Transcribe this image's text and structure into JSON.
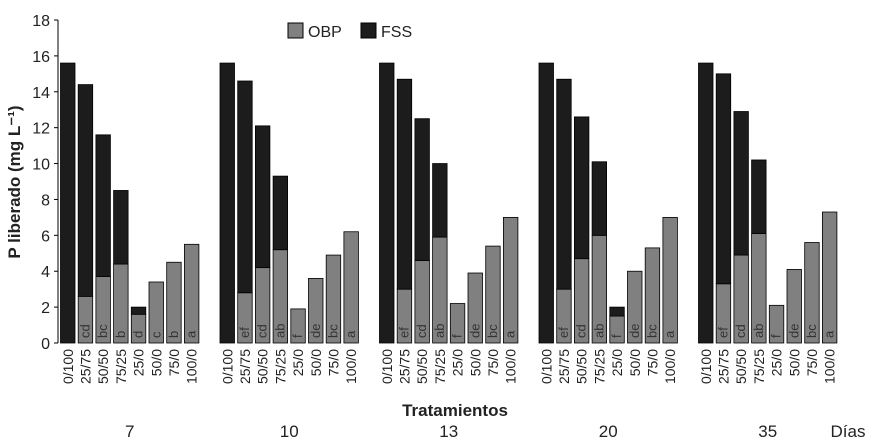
{
  "chart_data": {
    "type": "bar",
    "stacked": true,
    "title": "",
    "xlabel": "Tratamientos",
    "ylabel": "P liberado (mg L⁻¹)",
    "ylim": [
      0,
      18
    ],
    "yticks": [
      0,
      2,
      4,
      6,
      8,
      10,
      12,
      14,
      16,
      18
    ],
    "grid": false,
    "legend_position": "top-center",
    "categories": [
      "0/100",
      "25/75",
      "50/50",
      "75/25",
      "25/0",
      "50/0",
      "75/0",
      "100/0"
    ],
    "group_axis_label": "Días",
    "groups": [
      {
        "name": "7",
        "OBP": [
          0,
          2.6,
          3.7,
          4.4,
          1.6,
          3.4,
          4.5,
          5.5
        ],
        "FSS": [
          15.6,
          11.8,
          7.9,
          4.1,
          0.4,
          0,
          0,
          0
        ],
        "letters": [
          "",
          "cd",
          "bc",
          "b",
          "d",
          "c",
          "b",
          "a"
        ]
      },
      {
        "name": "10",
        "OBP": [
          0,
          2.8,
          4.2,
          5.2,
          1.9,
          3.6,
          4.9,
          6.2
        ],
        "FSS": [
          15.6,
          11.8,
          7.9,
          4.1,
          0,
          0,
          0,
          0
        ],
        "letters": [
          "",
          "ef",
          "cd",
          "ab",
          "f",
          "de",
          "bc",
          "a"
        ]
      },
      {
        "name": "13",
        "OBP": [
          0,
          3.0,
          4.6,
          5.9,
          2.2,
          3.9,
          5.4,
          7.0
        ],
        "FSS": [
          15.6,
          11.7,
          7.9,
          4.1,
          0,
          0,
          0,
          0
        ],
        "letters": [
          "",
          "ef",
          "cd",
          "ab",
          "f",
          "de",
          "bc",
          "a"
        ]
      },
      {
        "name": "20",
        "OBP": [
          0,
          3.0,
          4.7,
          6.0,
          1.5,
          4.0,
          5.3,
          7.0
        ],
        "FSS": [
          15.6,
          11.7,
          7.9,
          4.1,
          0.5,
          0,
          0,
          0
        ],
        "letters": [
          "",
          "ef",
          "cd",
          "ab",
          "f",
          "de",
          "bc",
          "a"
        ]
      },
      {
        "name": "35",
        "OBP": [
          0,
          3.3,
          4.9,
          6.1,
          2.1,
          4.1,
          5.6,
          7.3
        ],
        "FSS": [
          15.6,
          11.7,
          8.0,
          4.1,
          0,
          0,
          0,
          0
        ],
        "letters": [
          "",
          "ef",
          "cd",
          "ab",
          "f",
          "de",
          "bc",
          "a"
        ]
      }
    ],
    "series": [
      {
        "name": "OBP",
        "color": "#808080"
      },
      {
        "name": "FSS",
        "color": "#1c1c1c"
      }
    ]
  }
}
